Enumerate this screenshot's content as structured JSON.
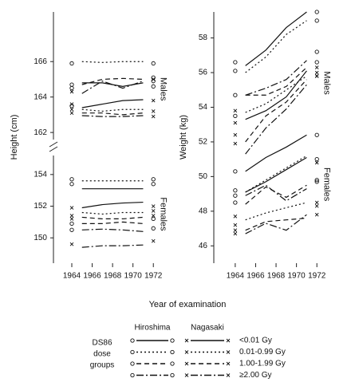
{
  "chart_data": [
    {
      "type": "line",
      "ylabel": "Height (cm)",
      "x": [
        1965,
        1967,
        1969,
        1971
      ],
      "marker_x": [
        1964,
        1972
      ],
      "xlim": [
        1962.2,
        1973
      ],
      "xticks": [
        1964,
        1966,
        1968,
        1970,
        1972
      ],
      "y_segments": [
        {
          "ylim": [
            161.6,
            168.8
          ],
          "yticks": [
            162,
            164,
            166
          ]
        },
        {
          "ylim": [
            148.4,
            155.2
          ],
          "yticks": [
            150,
            152,
            154
          ]
        }
      ],
      "groups": [
        {
          "label": "Males",
          "series": [
            {
              "city": "Hiroshima",
              "dose": "<0.01 Gy",
              "values": [
                164.8,
                164.8,
                164.6,
                164.8
              ],
              "marker_values": [
                164.7,
                164.9
              ]
            },
            {
              "city": "Hiroshima",
              "dose": "0.01-0.99 Gy",
              "values": [
                166.0,
                165.95,
                166.0,
                166.0
              ],
              "marker_values": [
                165.9,
                165.9
              ]
            },
            {
              "city": "Hiroshima",
              "dose": "1.00-1.99 Gy",
              "values": [
                164.7,
                165.0,
                165.05,
                165.0
              ],
              "marker_values": [
                164.5,
                165.1
              ]
            },
            {
              "city": "Hiroshima",
              "dose": "≥2.00 Gy",
              "values": [
                164.2,
                164.9,
                164.5,
                164.9
              ],
              "marker_values": [
                163.5,
                164.6
              ]
            },
            {
              "city": "Nagasaki",
              "dose": "<0.01 Gy",
              "values": [
                163.4,
                163.6,
                163.8,
                163.85
              ],
              "marker_values": [
                163.6,
                163.8
              ]
            },
            {
              "city": "Nagasaki",
              "dose": "0.01-0.99 Gy",
              "values": [
                163.3,
                163.2,
                163.3,
                163.3
              ],
              "marker_values": [
                163.3,
                163.2
              ]
            },
            {
              "city": "Nagasaki",
              "dose": "1.00-1.99 Gy",
              "values": [
                163.1,
                163.1,
                163.0,
                163.1
              ],
              "marker_values": [
                163.1,
                162.9
              ]
            },
            {
              "city": "Nagasaki",
              "dose": "≥2.00 Gy",
              "values": [
                162.95,
                162.9,
                162.9,
                162.95
              ],
              "marker_values": [
                164.3,
                165.0
              ]
            }
          ]
        },
        {
          "label": "Females",
          "series": [
            {
              "city": "Hiroshima",
              "dose": "<0.01 Gy",
              "values": [
                153.1,
                153.1,
                153.1,
                153.1
              ],
              "marker_values": [
                153.4,
                153.4
              ]
            },
            {
              "city": "Hiroshima",
              "dose": "0.01-0.99 Gy",
              "values": [
                153.6,
                153.6,
                153.6,
                153.6
              ],
              "marker_values": [
                153.7,
                153.7
              ]
            },
            {
              "city": "Hiroshima",
              "dose": "1.00-1.99 Gy",
              "values": [
                150.9,
                150.9,
                151.0,
                150.9
              ],
              "marker_values": [
                150.9,
                151.2
              ]
            },
            {
              "city": "Hiroshima",
              "dose": "≥2.00 Gy",
              "values": [
                150.5,
                150.55,
                150.5,
                150.4
              ],
              "marker_values": [
                150.5,
                150.6
              ]
            },
            {
              "city": "Nagasaki",
              "dose": "<0.01 Gy",
              "values": [
                151.9,
                152.1,
                152.2,
                152.25
              ],
              "marker_values": [
                151.9,
                152.0
              ]
            },
            {
              "city": "Nagasaki",
              "dose": "0.01-0.99 Gy",
              "values": [
                151.6,
                151.5,
                151.6,
                151.6
              ],
              "marker_values": [
                151.4,
                151.7
              ]
            },
            {
              "city": "Nagasaki",
              "dose": "1.00-1.99 Gy",
              "values": [
                151.3,
                151.2,
                151.2,
                151.3
              ],
              "marker_values": [
                151.2,
                151.4
              ]
            },
            {
              "city": "Nagasaki",
              "dose": "≥2.00 Gy",
              "values": [
                149.4,
                149.5,
                149.5,
                149.55
              ],
              "marker_values": [
                149.6,
                149.8
              ]
            }
          ]
        }
      ]
    },
    {
      "type": "line",
      "ylabel": "Weight (kg)",
      "ylabel_color": "#2e6b4f",
      "x": [
        1965,
        1967,
        1969,
        1971
      ],
      "marker_x": [
        1964,
        1972
      ],
      "xlim": [
        1961.9,
        1973
      ],
      "xticks": [
        1964,
        1966,
        1968,
        1970,
        1972
      ],
      "ylim": [
        45,
        59.5
      ],
      "yticks": [
        46,
        48,
        50,
        52,
        54,
        56,
        58
      ],
      "groups": [
        {
          "label": "Males",
          "series": [
            {
              "city": "Hiroshima",
              "dose": "<0.01 Gy",
              "values": [
                56.4,
                57.3,
                58.6,
                59.5
              ],
              "marker_values": [
                56.1,
                59.0
              ]
            },
            {
              "city": "Hiroshima",
              "dose": "0.01-0.99 Gy",
              "values": [
                56.0,
                56.9,
                58.2,
                59.0
              ],
              "marker_values": [
                56.6,
                59.5
              ]
            },
            {
              "city": "Hiroshima",
              "dose": "1.00-1.99 Gy",
              "values": [
                54.7,
                54.7,
                55.2,
                56.3
              ],
              "marker_values": [
                54.7,
                57.2
              ]
            },
            {
              "city": "Hiroshima",
              "dose": "≥2.00 Gy",
              "values": [
                54.7,
                55.1,
                55.6,
                56.7
              ],
              "marker_values": [
                53.5,
                56.6
              ]
            },
            {
              "city": "Nagasaki",
              "dose": "<0.01 Gy",
              "values": [
                53.3,
                53.8,
                54.6,
                56.1
              ],
              "marker_values": [
                53.8,
                55.8
              ]
            },
            {
              "city": "Nagasaki",
              "dose": "0.01-0.99 Gy",
              "values": [
                53.7,
                54.2,
                55.0,
                55.8
              ],
              "marker_values": [
                53.1,
                56.0
              ]
            },
            {
              "city": "Nagasaki",
              "dose": "1.00-1.99 Gy",
              "values": [
                52.0,
                53.5,
                54.3,
                55.6
              ],
              "marker_values": [
                52.4,
                55.8
              ]
            },
            {
              "city": "Nagasaki",
              "dose": "≥2.00 Gy",
              "values": [
                51.3,
                52.8,
                53.9,
                55.3
              ],
              "marker_values": [
                51.9,
                56.3
              ]
            }
          ]
        },
        {
          "label": "Females",
          "series": [
            {
              "city": "Hiroshima",
              "dose": "<0.01 Gy",
              "values": [
                50.3,
                51.1,
                51.7,
                52.4
              ],
              "marker_values": [
                50.3,
                52.4
              ]
            },
            {
              "city": "Hiroshima",
              "dose": "0.01-0.99 Gy",
              "values": [
                49.1,
                49.8,
                50.5,
                51.2
              ],
              "marker_values": [
                49.2,
                51.0
              ]
            },
            {
              "city": "Hiroshima",
              "dose": "1.00-1.99 Gy",
              "values": [
                48.4,
                49.4,
                48.8,
                49.5
              ],
              "marker_values": [
                48.5,
                49.7
              ]
            },
            {
              "city": "Hiroshima",
              "dose": "≥2.00 Gy",
              "values": [
                48.9,
                49.5,
                48.6,
                49.3
              ],
              "marker_values": [
                48.9,
                49.8
              ]
            },
            {
              "city": "Nagasaki",
              "dose": "<0.01 Gy",
              "values": [
                49.1,
                49.7,
                50.4,
                51.1
              ],
              "marker_values": [
                47.7,
                50.8
              ]
            },
            {
              "city": "Nagasaki",
              "dose": "0.01-0.99 Gy",
              "values": [
                47.5,
                47.9,
                48.2,
                48.5
              ],
              "marker_values": [
                47.2,
                48.3
              ]
            },
            {
              "city": "Nagasaki",
              "dose": "1.00-1.99 Gy",
              "values": [
                46.9,
                47.4,
                47.5,
                47.6
              ],
              "marker_values": [
                46.9,
                48.5
              ]
            },
            {
              "city": "Nagasaki",
              "dose": "≥2.00 Gy",
              "values": [
                46.7,
                47.3,
                46.9,
                47.8
              ],
              "marker_values": [
                46.7,
                47.8
              ]
            }
          ]
        }
      ]
    }
  ],
  "x_axis_label": "Year of examination",
  "legend": {
    "title": [
      "DS86",
      "dose",
      "groups"
    ],
    "cities": [
      {
        "name": "Hiroshima",
        "marker": "o"
      },
      {
        "name": "Nagasaki",
        "marker": "x"
      }
    ],
    "doses": [
      "<0.01 Gy",
      "0.01-0.99 Gy",
      "1.00-1.99 Gy",
      "≥2.00 Gy"
    ]
  }
}
